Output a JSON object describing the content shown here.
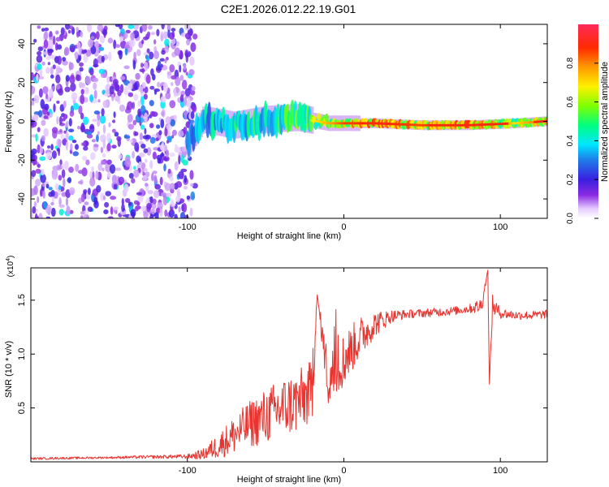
{
  "figure": {
    "title": "C2E1.2026.012.22.19.G01"
  },
  "chart_data": [
    {
      "type": "heatmap",
      "title": "C2E1.2026.012.22.19.G01",
      "xlabel": "Height of straight line (km)",
      "ylabel": "Frequency (Hz)",
      "xlim": [
        -200,
        130
      ],
      "ylim": [
        -50,
        50
      ],
      "xticks": [
        -100,
        0,
        100
      ],
      "yticks": [
        -40,
        -20,
        0,
        20,
        40
      ],
      "colorbar": {
        "label": "Normalized spectral amplitude",
        "range": [
          0.0,
          1.0
        ],
        "ticks": [
          0.0,
          0.2,
          0.4,
          0.6,
          0.8
        ]
      },
      "description_series": {
        "noise_region_x": [
          -200,
          -95
        ],
        "signal_trace": [
          {
            "x": -100,
            "freq": -12,
            "amp": 0.35
          },
          {
            "x": -90,
            "freq": 1,
            "amp": 0.45
          },
          {
            "x": -70,
            "freq": -2,
            "amp": 0.5
          },
          {
            "x": -50,
            "freq": 1,
            "amp": 0.55
          },
          {
            "x": -30,
            "freq": 2,
            "amp": 0.6
          },
          {
            "x": -10,
            "freq": -1,
            "amp": 0.75
          },
          {
            "x": 0,
            "freq": -1,
            "amp": 0.85
          },
          {
            "x": 20,
            "freq": -1,
            "amp": 0.9
          },
          {
            "x": 50,
            "freq": -2,
            "amp": 0.85
          },
          {
            "x": 80,
            "freq": -2,
            "amp": 0.95
          },
          {
            "x": 110,
            "freq": -1,
            "amp": 0.7
          },
          {
            "x": 128,
            "freq": 0,
            "amp": 0.85
          }
        ]
      }
    },
    {
      "type": "line",
      "xlabel": "Height of straight line (km)",
      "ylabel": "SNR (10 * v/v)",
      "y_multiplier": "(x10",
      "y_multiplier_exp": "4",
      "y_multiplier_close": ")",
      "xlim": [
        -200,
        130
      ],
      "ylim": [
        0,
        1.8
      ],
      "xticks": [
        -100,
        0,
        100
      ],
      "yticks": [
        0.5,
        1.0,
        1.5
      ],
      "ytick_labels": [
        "0.5",
        "1.0",
        "1.5"
      ],
      "series": [
        {
          "name": "SNR",
          "color": "#e8332e",
          "x": [
            -200,
            -150,
            -100,
            -90,
            -80,
            -70,
            -60,
            -50,
            -40,
            -30,
            -20,
            -17,
            -10,
            0,
            10,
            20,
            30,
            40,
            50,
            60,
            70,
            80,
            88,
            92,
            93,
            95,
            100,
            110,
            120,
            130
          ],
          "y": [
            0.03,
            0.04,
            0.05,
            0.07,
            0.15,
            0.25,
            0.35,
            0.42,
            0.5,
            0.55,
            0.65,
            1.55,
            0.75,
            0.95,
            1.15,
            1.28,
            1.35,
            1.37,
            1.38,
            1.39,
            1.4,
            1.42,
            1.45,
            1.78,
            0.72,
            1.45,
            1.38,
            1.36,
            1.36,
            1.37
          ],
          "spread": [
            0.01,
            0.01,
            0.02,
            0.05,
            0.12,
            0.18,
            0.22,
            0.26,
            0.28,
            0.3,
            0.3,
            0.0,
            0.28,
            0.25,
            0.2,
            0.12,
            0.06,
            0.04,
            0.04,
            0.04,
            0.04,
            0.04,
            0.08,
            0.0,
            0.0,
            0.1,
            0.05,
            0.04,
            0.04,
            0.04
          ]
        }
      ]
    }
  ]
}
